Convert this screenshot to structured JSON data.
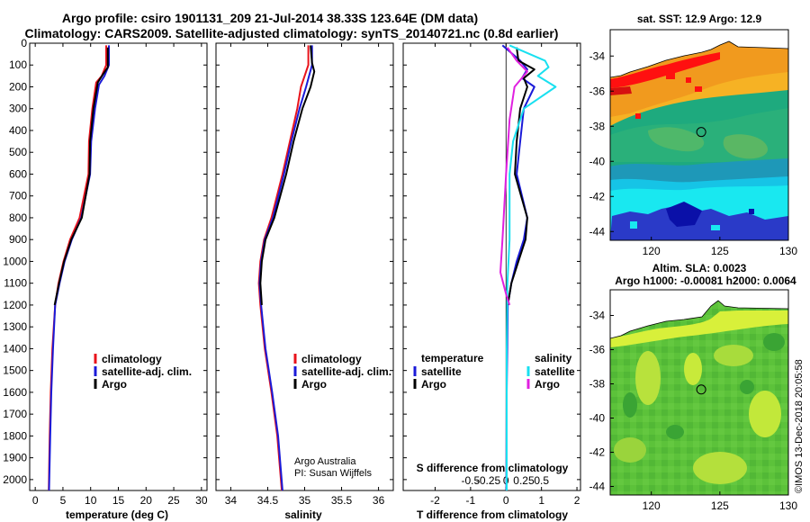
{
  "header": {
    "title_line1": "Argo profile: csiro 1901131_209 21-Jul-2014 38.33S 123.64E (DM data)",
    "title_line2": "Climatology: CARS2009. Satellite-adjusted climatology: synTS_20140721.nc (0.8d earlier)"
  },
  "depth_ticks": [
    "0",
    "100",
    "200",
    "300",
    "400",
    "500",
    "600",
    "700",
    "800",
    "900",
    "1000",
    "1100",
    "1200",
    "1300",
    "1400",
    "1500",
    "1600",
    "1700",
    "1800",
    "1900",
    "2000"
  ],
  "colors": {
    "red": "#e8131b",
    "blue": "#1a1ad8",
    "black": "#000000",
    "cyan": "#19e0f0",
    "magenta": "#e020e0"
  },
  "chart_data": [
    {
      "type": "line",
      "name": "temperature-panel",
      "xlabel": "temperature (deg C)",
      "ylabel": "",
      "xlim": [
        -1,
        31
      ],
      "ylim": [
        2050,
        0
      ],
      "y_inverted": true,
      "xticks": [
        0,
        5,
        10,
        15,
        20,
        25,
        30
      ],
      "xtick_labels": [
        "0",
        "5",
        "10",
        "15",
        "20",
        "25",
        "30"
      ],
      "legend": {
        "placement": "lower-left",
        "entries": [
          "climatology",
          "satellite-adj. clim.",
          "Argo"
        ]
      },
      "series": [
        {
          "name": "climatology",
          "color": "red",
          "points": [
            [
              12.8,
              10
            ],
            [
              12.8,
              100
            ],
            [
              12.0,
              150
            ],
            [
              11.0,
              180
            ],
            [
              10.3,
              300
            ],
            [
              9.7,
              450
            ],
            [
              9.6,
              600
            ],
            [
              8.0,
              800
            ],
            [
              6.3,
              900
            ],
            [
              5.1,
              1000
            ],
            [
              4.2,
              1100
            ],
            [
              3.6,
              1200
            ],
            [
              3.1,
              1400
            ],
            [
              2.8,
              1600
            ],
            [
              2.6,
              1800
            ],
            [
              2.45,
              2050
            ]
          ]
        },
        {
          "name": "satellite-adj. clim.",
          "color": "blue",
          "points": [
            [
              13.3,
              10
            ],
            [
              13.3,
              100
            ],
            [
              12.5,
              150
            ],
            [
              11.5,
              190
            ],
            [
              10.8,
              300
            ],
            [
              10.1,
              450
            ],
            [
              9.9,
              600
            ],
            [
              8.3,
              800
            ],
            [
              6.6,
              900
            ],
            [
              5.3,
              1000
            ],
            [
              4.4,
              1100
            ],
            [
              3.6,
              1200
            ],
            [
              3.2,
              1400
            ],
            [
              2.9,
              1600
            ],
            [
              2.7,
              1800
            ],
            [
              2.5,
              2050
            ]
          ]
        },
        {
          "name": "Argo",
          "color": "black",
          "points": [
            [
              13.1,
              20
            ],
            [
              13.1,
              110
            ],
            [
              12.3,
              140
            ],
            [
              11.3,
              180
            ],
            [
              10.5,
              300
            ],
            [
              9.9,
              450
            ],
            [
              9.8,
              600
            ],
            [
              8.4,
              800
            ],
            [
              6.5,
              900
            ],
            [
              5.2,
              1000
            ],
            [
              4.3,
              1100
            ],
            [
              3.5,
              1200
            ]
          ]
        }
      ]
    },
    {
      "type": "line",
      "name": "salinity-panel",
      "xlabel": "salinity",
      "ylabel": "",
      "xlim": [
        33.8,
        36.2
      ],
      "ylim": [
        2050,
        0
      ],
      "y_inverted": true,
      "xticks": [
        34,
        34.5,
        35,
        35.5,
        36
      ],
      "xtick_labels": [
        "34",
        "34.5",
        "35",
        "35.5",
        "36"
      ],
      "legend": {
        "placement": "lower-right",
        "entries": [
          "climatology",
          "satellite-adj. clim.",
          "Argo"
        ]
      },
      "annotations": [
        "Argo Australia",
        "PI: Susan Wijffels"
      ],
      "series": [
        {
          "name": "climatology",
          "color": "red",
          "points": [
            [
              35.05,
              10
            ],
            [
              35.05,
              100
            ],
            [
              34.95,
              200
            ],
            [
              34.9,
              300
            ],
            [
              34.8,
              450
            ],
            [
              34.7,
              600
            ],
            [
              34.55,
              800
            ],
            [
              34.45,
              900
            ],
            [
              34.4,
              1000
            ],
            [
              34.38,
              1100
            ],
            [
              34.4,
              1200
            ],
            [
              34.46,
              1400
            ],
            [
              34.55,
              1600
            ],
            [
              34.63,
              1800
            ],
            [
              34.69,
              2050
            ]
          ]
        },
        {
          "name": "satellite-adj. clim.",
          "color": "blue",
          "points": [
            [
              35.1,
              10
            ],
            [
              35.1,
              100
            ],
            [
              35.02,
              200
            ],
            [
              34.93,
              300
            ],
            [
              34.82,
              450
            ],
            [
              34.72,
              600
            ],
            [
              34.57,
              800
            ],
            [
              34.46,
              900
            ],
            [
              34.41,
              1000
            ],
            [
              34.39,
              1100
            ],
            [
              34.41,
              1200
            ],
            [
              34.47,
              1400
            ],
            [
              34.56,
              1600
            ],
            [
              34.64,
              1800
            ],
            [
              34.7,
              2050
            ]
          ]
        },
        {
          "name": "Argo",
          "color": "black",
          "points": [
            [
              35.08,
              10
            ],
            [
              35.1,
              90
            ],
            [
              35.13,
              130
            ],
            [
              35.08,
              200
            ],
            [
              34.97,
              300
            ],
            [
              34.85,
              450
            ],
            [
              34.75,
              600
            ],
            [
              34.59,
              800
            ],
            [
              34.47,
              900
            ],
            [
              34.42,
              1000
            ],
            [
              34.4,
              1100
            ],
            [
              34.42,
              1200
            ]
          ]
        }
      ]
    },
    {
      "type": "line",
      "name": "difference-panel",
      "xlabel": "T difference from climatology",
      "ylabel": "",
      "top_axis_label": "S difference from climatology",
      "xlim": [
        -2.9,
        2.1
      ],
      "ylim": [
        2050,
        0
      ],
      "y_inverted": true,
      "xticks": [
        -2,
        -1,
        0,
        1,
        2
      ],
      "xtick_labels": [
        "-2",
        "-1",
        "0",
        "1",
        "2"
      ],
      "s_ticks": [
        -0.5,
        -0.25,
        0,
        0.25,
        0.5
      ],
      "s_tick_labels": [
        "-0.5",
        "-0.25",
        "0",
        "0.25",
        "0.5"
      ],
      "legend": {
        "placement": "lower",
        "temperature_heading": "temperature",
        "salinity_heading": "salinity",
        "temperature_entries": [
          "satellite",
          "Argo"
        ],
        "salinity_entries": [
          "satellite",
          "Argo"
        ]
      },
      "series": [
        {
          "name": "satellite",
          "group": "temperature",
          "color": "blue",
          "points": [
            [
              -0.1,
              10
            ],
            [
              0.4,
              80
            ],
            [
              0.6,
              120
            ],
            [
              0.45,
              160
            ],
            [
              0.8,
              200
            ],
            [
              0.5,
              300
            ],
            [
              0.4,
              450
            ],
            [
              0.3,
              600
            ],
            [
              0.6,
              800
            ],
            [
              0.5,
              900
            ],
            [
              0.3,
              1000
            ],
            [
              0.15,
              1100
            ],
            [
              0.05,
              1200
            ],
            [
              0.02,
              1600
            ],
            [
              0.01,
              2050
            ]
          ]
        },
        {
          "name": "Argo",
          "group": "temperature",
          "color": "black",
          "points": [
            [
              0.3,
              20
            ],
            [
              0.35,
              80
            ],
            [
              0.8,
              120
            ],
            [
              0.5,
              160
            ],
            [
              0.6,
              200
            ],
            [
              0.4,
              300
            ],
            [
              0.3,
              450
            ],
            [
              0.25,
              600
            ],
            [
              0.6,
              800
            ],
            [
              0.55,
              900
            ],
            [
              0.35,
              1000
            ],
            [
              0.15,
              1100
            ],
            [
              0.05,
              1200
            ]
          ]
        },
        {
          "name": "satellite",
          "group": "salinity",
          "color": "cyan",
          "points": [
            [
              0.05,
              10
            ],
            [
              0.55,
              80
            ],
            [
              0.6,
              110
            ],
            [
              0.45,
              150
            ],
            [
              0.7,
              200
            ],
            [
              0.25,
              300
            ],
            [
              0.1,
              450
            ],
            [
              0.05,
              600
            ],
            [
              0.05,
              900
            ],
            [
              0.02,
              1100
            ],
            [
              0.01,
              1400
            ],
            [
              0.01,
              2050
            ]
          ]
        },
        {
          "name": "Argo",
          "group": "salinity",
          "color": "magenta",
          "points": [
            [
              0.02,
              20
            ],
            [
              0.15,
              80
            ],
            [
              0.3,
              130
            ],
            [
              0.12,
              200
            ],
            [
              0.05,
              350
            ],
            [
              0.0,
              600
            ],
            [
              -0.05,
              900
            ],
            [
              -0.08,
              1050
            ],
            [
              0.0,
              1150
            ],
            [
              0.05,
              1200
            ]
          ]
        }
      ]
    },
    {
      "type": "heatmap",
      "name": "sst-map",
      "title": "sat. SST: 12.9 Argo: 12.9",
      "xlim": [
        117,
        130
      ],
      "ylim": [
        -44.5,
        -32.5
      ],
      "xticks": [
        120,
        125,
        130
      ],
      "xtick_labels": [
        "120",
        "125",
        "130"
      ],
      "yticks": [
        -34,
        -36,
        -38,
        -40,
        -42,
        -44
      ],
      "ytick_labels": [
        "-34",
        "-36",
        "-38",
        "-40",
        "-42",
        "-44"
      ],
      "profile_location": [
        123.64,
        -38.33
      ]
    },
    {
      "type": "heatmap",
      "name": "sla-map",
      "title": "Altim. SLA: 0.0023",
      "subtitle": "Argo h1000: -0.00081 h2000: 0.0064",
      "xlim": [
        117,
        130
      ],
      "ylim": [
        -44.5,
        -32.5
      ],
      "xticks": [
        120,
        125,
        130
      ],
      "xtick_labels": [
        "120",
        "125",
        "130"
      ],
      "yticks": [
        -34,
        -36,
        -38,
        -40,
        -42,
        -44
      ],
      "ytick_labels": [
        "-34",
        "-36",
        "-38",
        "-40",
        "-42",
        "-44"
      ],
      "profile_location": [
        123.64,
        -38.33
      ]
    }
  ],
  "footer": {
    "credit": "©IMOS 13-Dec-2018 20:05:58"
  }
}
